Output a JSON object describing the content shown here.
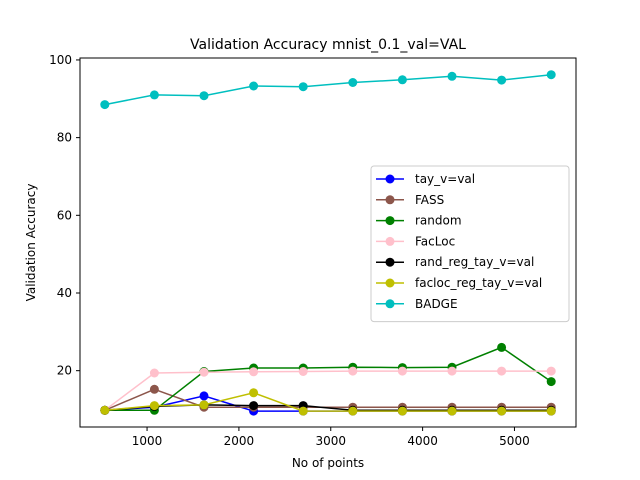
{
  "chart_data": {
    "type": "line",
    "title": "Validation Accuracy mnist_0.1_val=VAL",
    "xlabel": "No of points",
    "ylabel": "Validation Accuracy",
    "xlim": [
      270,
      5670
    ],
    "ylim": [
      5.5,
      100.5
    ],
    "xticks": [
      1000,
      2000,
      3000,
      4000,
      5000
    ],
    "yticks": [
      20,
      40,
      60,
      80,
      100
    ],
    "legend_position": "center-right",
    "grid": false,
    "x": [
      540,
      1080,
      1620,
      2160,
      2700,
      3240,
      3780,
      4320,
      4860,
      5400
    ],
    "series": [
      {
        "name": "tay_v=val",
        "color": "#0000ff",
        "values": [
          9.8,
          10.6,
          13.5,
          9.6,
          9.6,
          9.6,
          9.6,
          9.6,
          9.6,
          9.6
        ]
      },
      {
        "name": "FASS",
        "color": "#8c564b",
        "values": [
          9.8,
          15.2,
          10.6,
          10.6,
          10.6,
          10.6,
          10.6,
          10.6,
          10.6,
          10.6
        ]
      },
      {
        "name": "random",
        "color": "#008000",
        "values": [
          9.8,
          9.8,
          19.8,
          20.7,
          20.7,
          20.9,
          20.8,
          20.9,
          26.0,
          17.2
        ]
      },
      {
        "name": "FacLoc",
        "color": "#ffc0cb",
        "values": [
          9.8,
          19.4,
          19.6,
          19.7,
          19.8,
          19.9,
          19.9,
          19.9,
          19.9,
          19.9
        ]
      },
      {
        "name": "rand_reg_tay_v=val",
        "color": "#000000",
        "values": [
          9.8,
          10.8,
          11.2,
          11.0,
          11.0,
          9.8,
          9.8,
          9.8,
          9.8,
          9.8
        ]
      },
      {
        "name": "facloc_reg_tay_v=val",
        "color": "#bfbf00",
        "values": [
          9.8,
          11.0,
          11.2,
          14.3,
          9.6,
          9.6,
          9.6,
          9.6,
          9.6,
          9.6
        ]
      },
      {
        "name": "BADGE",
        "color": "#00bfbf",
        "values": [
          88.5,
          91.0,
          90.8,
          93.3,
          93.1,
          94.2,
          94.9,
          95.8,
          94.8,
          96.2
        ]
      }
    ]
  }
}
